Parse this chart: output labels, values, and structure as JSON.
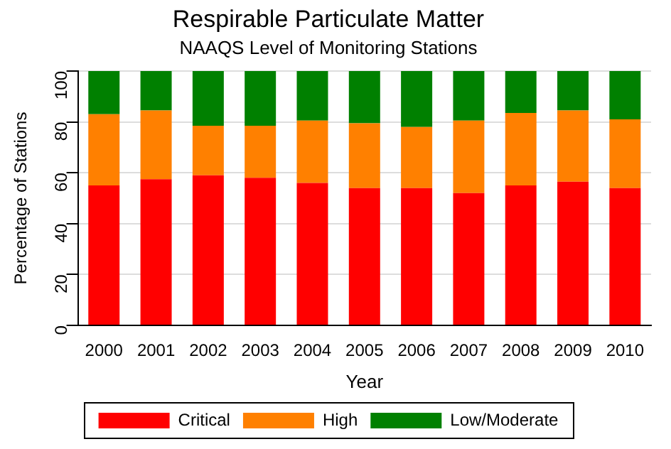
{
  "chart_data": {
    "type": "bar",
    "title": "Respirable Particulate Matter",
    "subtitle": "NAAQS Level of Monitoring Stations",
    "xlabel": "Year",
    "ylabel": "Percentage of Stations",
    "categories": [
      "2000",
      "2001",
      "2002",
      "2003",
      "2004",
      "2005",
      "2006",
      "2007",
      "2008",
      "2009",
      "2010"
    ],
    "stacked": true,
    "series": [
      {
        "name": "Critical",
        "color": "#ff0000",
        "values": [
          55,
          57.5,
          59,
          58,
          56,
          54,
          54,
          52,
          55,
          56.5,
          54
        ]
      },
      {
        "name": "High",
        "color": "#ff8000",
        "values": [
          28,
          27,
          19.5,
          20.5,
          24.5,
          25.5,
          24,
          28.5,
          28.5,
          28,
          27
        ]
      },
      {
        "name": "Low/Moderate",
        "color": "#008000",
        "values": [
          17,
          15.5,
          21.5,
          21.5,
          19.5,
          20.5,
          22,
          19.5,
          16.5,
          15.5,
          19
        ]
      }
    ],
    "ylim": [
      0,
      100
    ],
    "yticks": [
      0,
      20,
      40,
      60,
      80,
      100
    ],
    "grid": "y",
    "legend": "bottom"
  }
}
